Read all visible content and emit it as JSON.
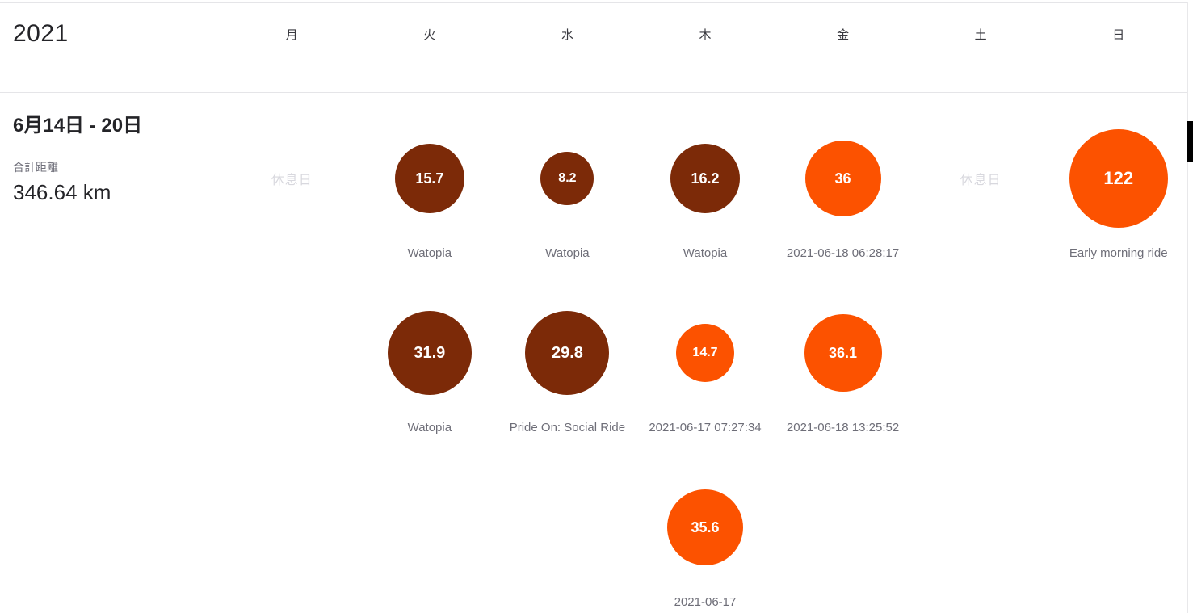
{
  "header": {
    "year": "2021",
    "weekdays": [
      "月",
      "火",
      "水",
      "木",
      "金",
      "土",
      "日"
    ]
  },
  "week": {
    "title": "6月14日 - 20日",
    "total_distance_label": "合計距離",
    "total_distance_value": "346.64 km",
    "rest_day_label": "休息日"
  },
  "colors": {
    "activity_orange": "#fc5200",
    "activity_dark_brown": "#7c2a08",
    "label_gray": "#6e6e78",
    "rest_gray": "#d8d8de"
  },
  "chart_data": {
    "type": "bubble-calendar",
    "title": "6月14日 - 20日",
    "total_distance_km": 346.64,
    "columns": [
      "月",
      "火",
      "水",
      "木",
      "金",
      "土",
      "日"
    ],
    "rows": [
      [
        {
          "type": "rest"
        },
        {
          "type": "activity",
          "value": "15.7",
          "label": "Watopia",
          "color": "#7c2a08",
          "radius": 43
        },
        {
          "type": "activity",
          "value": "8.2",
          "label": "Watopia",
          "color": "#7c2a08",
          "radius": 33
        },
        {
          "type": "activity",
          "value": "16.2",
          "label": "Watopia",
          "color": "#7c2a08",
          "radius": 43
        },
        {
          "type": "activity",
          "value": "36",
          "label": "2021-06-18 06:28:17",
          "color": "#fc5200",
          "radius": 47
        },
        {
          "type": "rest"
        },
        {
          "type": "activity",
          "value": "122",
          "label": "Early morning ride",
          "color": "#fc5200",
          "radius": 61
        }
      ],
      [
        null,
        {
          "type": "activity",
          "value": "31.9",
          "label": "Watopia",
          "color": "#7c2a08",
          "radius": 52
        },
        {
          "type": "activity",
          "value": "29.8",
          "label": "Pride On: Social Ride",
          "color": "#7c2a08",
          "radius": 52
        },
        {
          "type": "activity",
          "value": "14.7",
          "label": "2021-06-17 07:27:34",
          "color": "#fc5200",
          "radius": 36
        },
        {
          "type": "activity",
          "value": "36.1",
          "label": "2021-06-18 13:25:52",
          "color": "#fc5200",
          "radius": 48
        },
        null,
        null
      ],
      [
        null,
        null,
        null,
        {
          "type": "activity",
          "value": "35.6",
          "label": "2021-06-17",
          "color": "#fc5200",
          "radius": 47
        },
        null,
        null,
        null
      ]
    ]
  }
}
